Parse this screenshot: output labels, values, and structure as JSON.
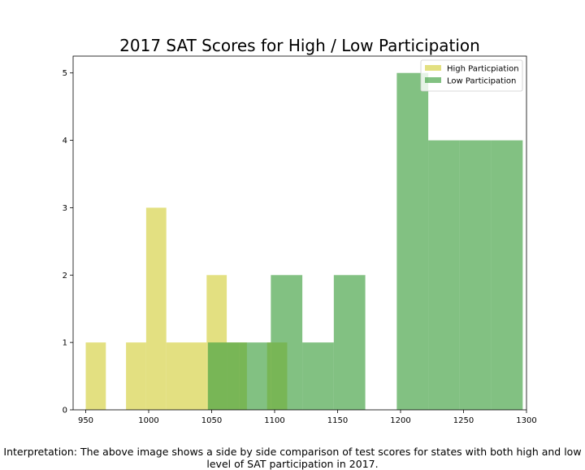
{
  "colors": {
    "high": "#d4d03d",
    "low": "#3f9f3f"
  },
  "chart_data": {
    "type": "bar",
    "title": "2017 SAT Scores for High / Low Participation",
    "xlabel": "",
    "ylabel": "",
    "xlim": [
      940,
      1300
    ],
    "ylim": [
      0,
      5.25
    ],
    "x_ticks": [
      "950",
      "1000",
      "1050",
      "1100",
      "1150",
      "1200",
      "1250",
      "1300"
    ],
    "y_ticks": [
      "0",
      "1",
      "2",
      "3",
      "4",
      "5"
    ],
    "grid": false,
    "legend_position": "top-right",
    "bar_alpha": 0.65,
    "series": [
      {
        "name": "High Particpiation",
        "color": "#d4d03d",
        "bins": [
          {
            "x0": 950,
            "x1": 966,
            "value": 1
          },
          {
            "x0": 966,
            "x1": 982,
            "value": 0
          },
          {
            "x0": 982,
            "x1": 998,
            "value": 1
          },
          {
            "x0": 998,
            "x1": 1014,
            "value": 3
          },
          {
            "x0": 1014,
            "x1": 1030,
            "value": 1
          },
          {
            "x0": 1030,
            "x1": 1046,
            "value": 1
          },
          {
            "x0": 1046,
            "x1": 1062,
            "value": 2
          },
          {
            "x0": 1062,
            "x1": 1078,
            "value": 1
          },
          {
            "x0": 1078,
            "x1": 1094,
            "value": 0
          },
          {
            "x0": 1094,
            "x1": 1110,
            "value": 1
          }
        ]
      },
      {
        "name": "Low Participation",
        "color": "#3f9f3f",
        "bins": [
          {
            "x0": 1047,
            "x1": 1072,
            "value": 1
          },
          {
            "x0": 1072,
            "x1": 1097,
            "value": 1
          },
          {
            "x0": 1097,
            "x1": 1122,
            "value": 2
          },
          {
            "x0": 1122,
            "x1": 1147,
            "value": 1
          },
          {
            "x0": 1147,
            "x1": 1172,
            "value": 2
          },
          {
            "x0": 1172,
            "x1": 1197,
            "value": 0
          },
          {
            "x0": 1197,
            "x1": 1222,
            "value": 5
          },
          {
            "x0": 1222,
            "x1": 1247,
            "value": 4
          },
          {
            "x0": 1247,
            "x1": 1272,
            "value": 4
          },
          {
            "x0": 1272,
            "x1": 1297,
            "value": 4
          }
        ]
      }
    ]
  },
  "caption": "Interpretation: The above image shows a side by side comparison of test scores for states with both high and low level of SAT participation in 2017."
}
